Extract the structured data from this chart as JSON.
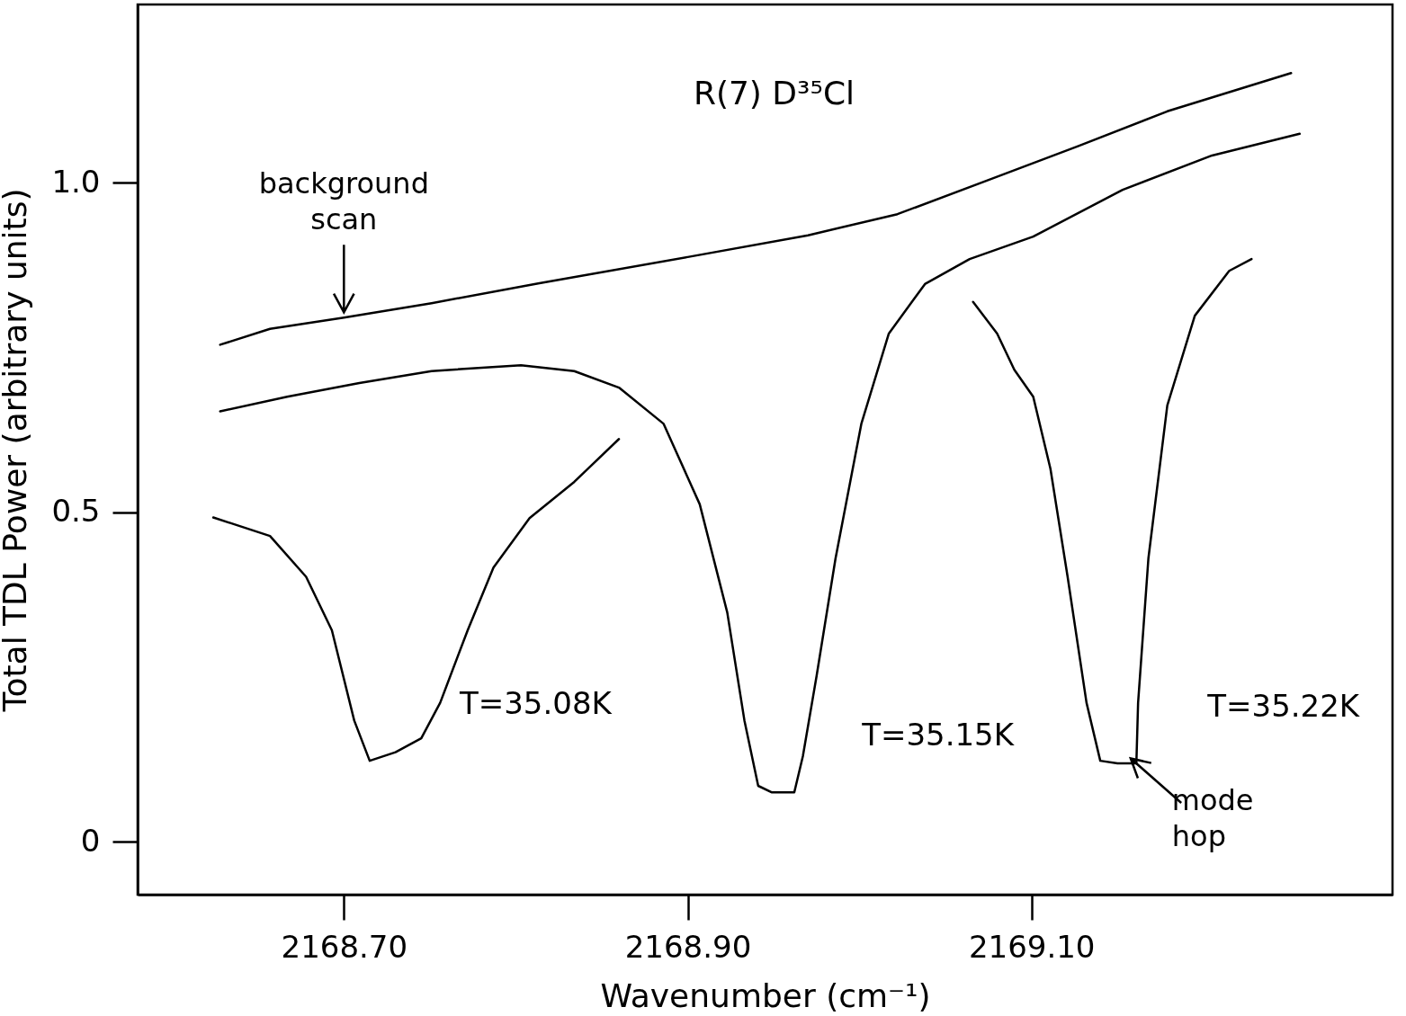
{
  "chart_data": {
    "type": "line",
    "title": "R(7) D³⁵Cl",
    "xlabel": "Wavenumber (cm⁻¹)",
    "ylabel": "Total TDL Power (arbitrary units)",
    "xlim": [
      2168.58,
      2169.31
    ],
    "xticks": [
      {
        "value": 2168.7,
        "label": "2168.70"
      },
      {
        "value": 2168.9,
        "label": "2168.90"
      },
      {
        "value": 2169.1,
        "label": "2169.10"
      }
    ],
    "ylim": [
      -0.08,
      1.27
    ],
    "yticks": [
      0,
      0.5,
      {
        "value": 1,
        "label": "1.0"
      }
    ],
    "series": [
      {
        "color": "#000000",
        "x": [
          2168.628,
          2168.657,
          2168.7,
          2168.751,
          2168.813,
          2168.9,
          2168.97,
          2169.022,
          2169.074,
          2169.127,
          2169.179,
          2169.251
        ],
        "values": [
          0.754,
          0.778,
          0.795,
          0.817,
          0.847,
          0.887,
          0.92,
          0.952,
          1.003,
          1.055,
          1.108,
          1.166
        ]
      },
      {
        "name": "T=35.08K",
        "color": "#000000",
        "x": [
          2168.624,
          2168.657,
          2168.678,
          2168.693,
          2168.706,
          2168.715,
          2168.73,
          2168.745,
          2168.756,
          2168.772,
          2168.787,
          2168.808,
          2168.834,
          2168.86
        ],
        "values": [
          0.492,
          0.464,
          0.402,
          0.321,
          0.184,
          0.123,
          0.136,
          0.157,
          0.211,
          0.321,
          0.416,
          0.491,
          0.546,
          0.611
        ]
      },
      {
        "name": "T=35.15K",
        "color": "#000000",
        "x": [
          2168.628,
          2168.667,
          2168.709,
          2168.751,
          2168.803,
          2168.834,
          2168.86,
          2168.886,
          2168.907,
          2168.923,
          2168.933,
          2168.941,
          2168.949,
          2168.962,
          2168.967,
          2168.975,
          2168.986,
          2169.001,
          2169.017,
          2169.038,
          2169.064,
          2169.101,
          2169.153,
          2169.205,
          2169.256
        ],
        "values": [
          0.653,
          0.675,
          0.696,
          0.714,
          0.723,
          0.714,
          0.689,
          0.634,
          0.512,
          0.348,
          0.184,
          0.085,
          0.075,
          0.075,
          0.13,
          0.252,
          0.43,
          0.634,
          0.771,
          0.846,
          0.884,
          0.918,
          0.989,
          1.041,
          1.074
        ]
      },
      {
        "name": "T=35.22K",
        "color": "#000000",
        "x": [
          2169.066,
          2169.08,
          2169.09,
          2169.101,
          2169.111,
          2169.121,
          2169.132,
          2169.14,
          2169.15,
          2169.161,
          2169.162,
          2169.168,
          2169.179,
          2169.195,
          2169.215,
          2169.228
        ],
        "values": [
          0.819,
          0.771,
          0.716,
          0.675,
          0.566,
          0.402,
          0.211,
          0.123,
          0.119,
          0.119,
          0.211,
          0.43,
          0.662,
          0.798,
          0.866,
          0.884
        ]
      }
    ],
    "annotations": [
      {
        "text": "background scan",
        "x": 2168.7,
        "y": 0.795
      },
      {
        "text": "mode hop",
        "x": 2169.161,
        "y": 0.119
      }
    ]
  }
}
